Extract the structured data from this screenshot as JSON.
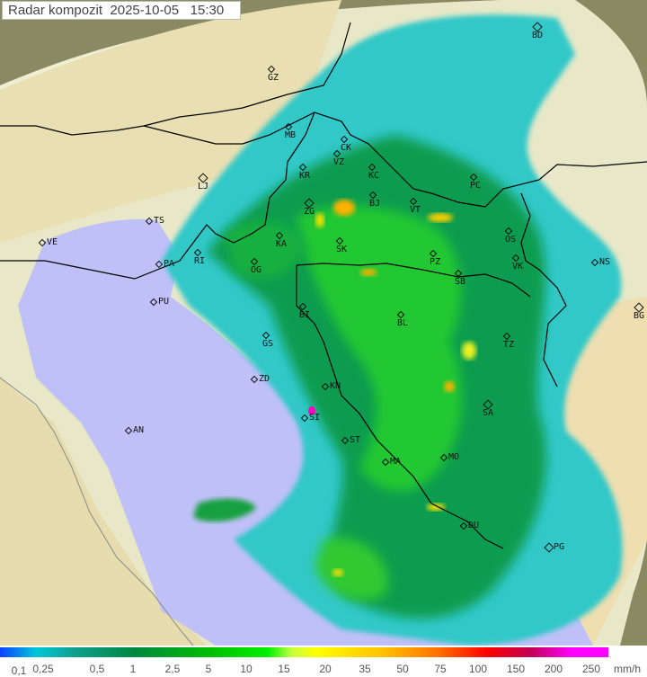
{
  "title": {
    "label": "Radar kompozit",
    "date": "2025-10-05",
    "time": "15:30"
  },
  "map": {
    "cities": [
      {
        "code": "GZ"
      },
      {
        "code": "BD",
        "major": true
      },
      {
        "code": "MB"
      },
      {
        "code": "CK"
      },
      {
        "code": "VZ"
      },
      {
        "code": "KR"
      },
      {
        "code": "KC"
      },
      {
        "code": "PC"
      },
      {
        "code": "LJ",
        "major": true
      },
      {
        "code": "TS"
      },
      {
        "code": "VE"
      },
      {
        "code": "ZG",
        "major": true
      },
      {
        "code": "BJ"
      },
      {
        "code": "VT"
      },
      {
        "code": "KA"
      },
      {
        "code": "SK"
      },
      {
        "code": "RI"
      },
      {
        "code": "OS"
      },
      {
        "code": "PA"
      },
      {
        "code": "PZ"
      },
      {
        "code": "SB"
      },
      {
        "code": "VK"
      },
      {
        "code": "NS"
      },
      {
        "code": "OG"
      },
      {
        "code": "PU"
      },
      {
        "code": "BI"
      },
      {
        "code": "BL"
      },
      {
        "code": "BG",
        "major": true
      },
      {
        "code": "GS"
      },
      {
        "code": "TZ"
      },
      {
        "code": "ZD"
      },
      {
        "code": "KN"
      },
      {
        "code": "SI"
      },
      {
        "code": "SA",
        "major": true
      },
      {
        "code": "AN"
      },
      {
        "code": "ST"
      },
      {
        "code": "MA"
      },
      {
        "code": "MO"
      },
      {
        "code": "DU"
      },
      {
        "code": "PG",
        "major": true
      }
    ],
    "colors": {
      "land": "#f0ecc0",
      "sea": "#c0c0f8",
      "outside": "#8a8a62",
      "border": "#000000"
    }
  },
  "legend": {
    "unit": "mm/h",
    "labels": [
      "0,1",
      "0,25",
      "0,5",
      "1",
      "2,5",
      "5",
      "10",
      "15",
      "20",
      "35",
      "50",
      "75",
      "100",
      "150",
      "200",
      "250"
    ]
  }
}
